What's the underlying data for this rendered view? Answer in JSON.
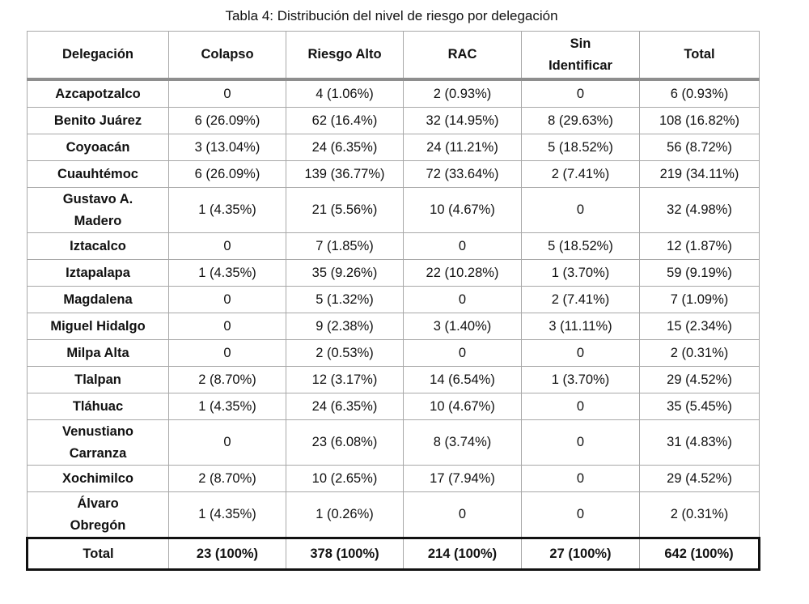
{
  "caption": "Tabla 4: Distribución del nivel de riesgo por delegación",
  "headers": [
    "Delegación",
    "Colapso",
    "Riesgo Alto",
    "RAC",
    "Sin Identificar",
    "Total"
  ],
  "rows": [
    [
      "Azcapotzalco",
      "0",
      "4 (1.06%)",
      "2 (0.93%)",
      "0",
      "6 (0.93%)"
    ],
    [
      "Benito Juárez",
      "6 (26.09%)",
      "62 (16.4%)",
      "32 (14.95%)",
      "8 (29.63%)",
      "108 (16.82%)"
    ],
    [
      "Coyoacán",
      "3 (13.04%)",
      "24 (6.35%)",
      "24 (11.21%)",
      "5 (18.52%)",
      "56 (8.72%)"
    ],
    [
      "Cuauhtémoc",
      "6 (26.09%)",
      "139 (36.77%)",
      "72 (33.64%)",
      "2 (7.41%)",
      "219 (34.11%)"
    ],
    [
      "Gustavo A. Madero",
      "1 (4.35%)",
      "21 (5.56%)",
      "10 (4.67%)",
      "0",
      "32 (4.98%)"
    ],
    [
      "Iztacalco",
      "0",
      "7 (1.85%)",
      "0",
      "5 (18.52%)",
      "12 (1.87%)"
    ],
    [
      "Iztapalapa",
      "1 (4.35%)",
      "35 (9.26%)",
      "22 (10.28%)",
      "1 (3.70%)",
      "59 (9.19%)"
    ],
    [
      "Magdalena",
      "0",
      "5 (1.32%)",
      "0",
      "2 (7.41%)",
      "7 (1.09%)"
    ],
    [
      "Miguel Hidalgo",
      "0",
      "9 (2.38%)",
      "3 (1.40%)",
      "3 (11.11%)",
      "15 (2.34%)"
    ],
    [
      "Milpa Alta",
      "0",
      "2 (0.53%)",
      "0",
      "0",
      "2 (0.31%)"
    ],
    [
      "Tlalpan",
      "2 (8.70%)",
      "12 (3.17%)",
      "14 (6.54%)",
      "1 (3.70%)",
      "29 (4.52%)"
    ],
    [
      "Tláhuac",
      "1 (4.35%)",
      "24 (6.35%)",
      "10 (4.67%)",
      "0",
      "35 (5.45%)"
    ],
    [
      "Venustiano Carranza",
      "0",
      "23 (6.08%)",
      "8 (3.74%)",
      "0",
      "31 (4.83%)"
    ],
    [
      "Xochimilco",
      "2 (8.70%)",
      "10 (2.65%)",
      "17 (7.94%)",
      "0",
      "29 (4.52%)"
    ],
    [
      "Álvaro Obregón",
      "1 (4.35%)",
      "1 (0.26%)",
      "0",
      "0",
      "2 (0.31%)"
    ]
  ],
  "total": [
    "Total",
    "23 (100%)",
    "378 (100%)",
    "214 (100%)",
    "27 (100%)",
    "642 (100%)"
  ]
}
